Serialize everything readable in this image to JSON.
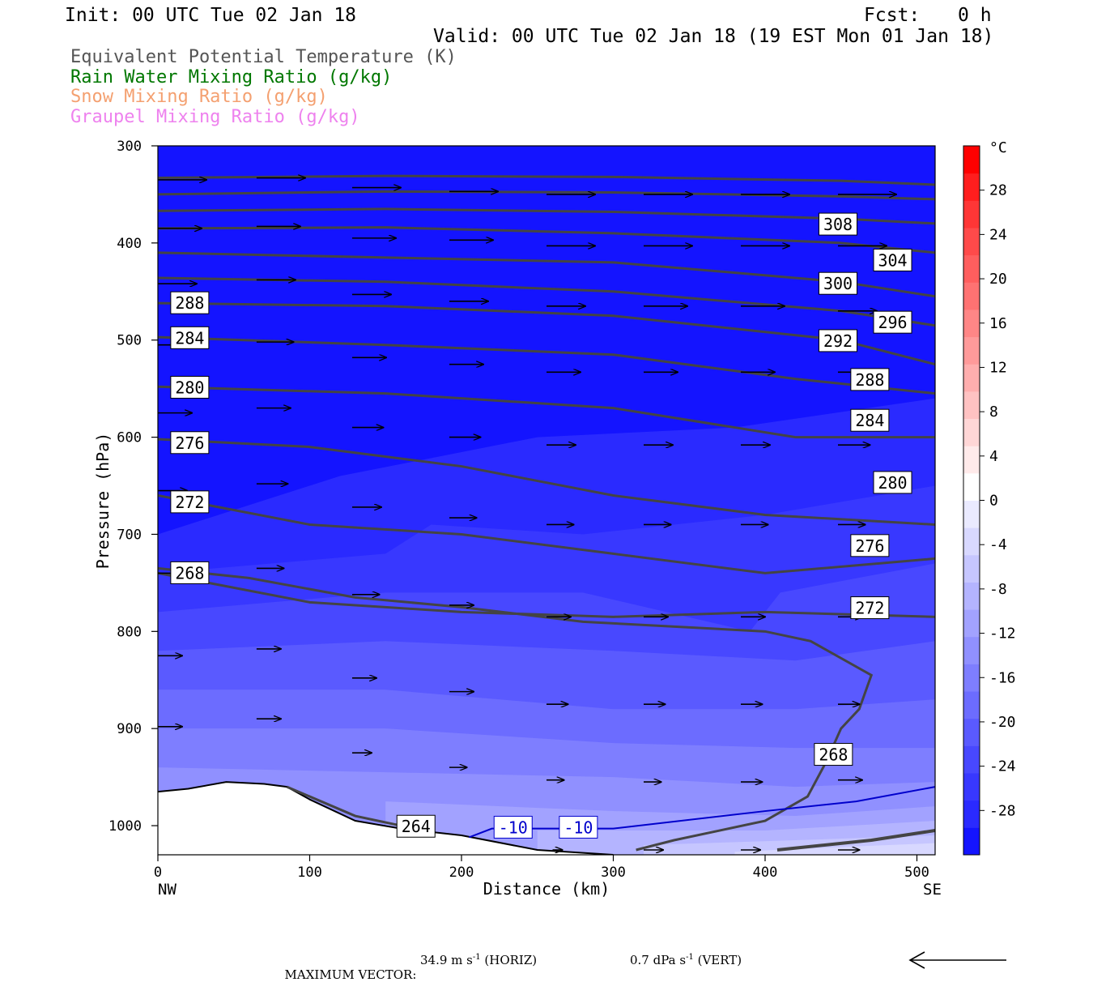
{
  "header": {
    "init": "Init: 00 UTC Tue 02 Jan 18",
    "fcst_label": "Fcst:",
    "fcst_value": "0 h",
    "valid": "Valid: 00 UTC Tue 02 Jan 18 (19 EST Mon 01 Jan 18)"
  },
  "legend": {
    "line1": "Equivalent Potential Temperature (K)",
    "line2": "Rain Water Mixing Ratio (g/kg)",
    "line3": "Snow Mixing Ratio (g/kg)",
    "line4": "Graupel Mixing Ratio (g/kg)",
    "color1": "#555555",
    "color2": "#007700",
    "color3": "#f4a070",
    "color4": "#ee82ee"
  },
  "chart_data": {
    "type": "cross-section",
    "xlabel": "Distance (km)",
    "ylabel": "Pressure (hPa)",
    "xlim": [
      0,
      512
    ],
    "ylim": [
      1030,
      300
    ],
    "xticks": [
      0,
      100,
      200,
      300,
      400,
      500
    ],
    "yticks": [
      300,
      400,
      500,
      600,
      700,
      800,
      900,
      1000
    ],
    "x_end_labels": {
      "left": "NW",
      "right": "SE"
    },
    "shaded_field": "Temperature (°C)",
    "colorbar": {
      "unit": "°C",
      "ticks": [
        28,
        24,
        20,
        16,
        12,
        8,
        4,
        0,
        -4,
        -8,
        -12,
        -16,
        -20,
        -24,
        -28
      ],
      "range": [
        -32,
        32
      ],
      "colors": [
        "#1414ff",
        "#2a2aff",
        "#3838ff",
        "#4848ff",
        "#5a5aff",
        "#6c6cff",
        "#7e7eff",
        "#9090ff",
        "#a2a2ff",
        "#b4b4ff",
        "#c6c6ff",
        "#d8d8ff",
        "#eaeaff",
        "#ffffff",
        "#ffeaea",
        "#ffd6d6",
        "#ffc2c2",
        "#ffaeae",
        "#ff9a9a",
        "#ff8686",
        "#ff7272",
        "#ff5e5e",
        "#ff4a4a",
        "#ff3636",
        "#ff1e1e",
        "#ff0000"
      ]
    },
    "theta_e_labels": [
      "308",
      "304",
      "300",
      "296",
      "292",
      "288",
      "284",
      "280",
      "276",
      "272",
      "268",
      "264"
    ],
    "temperature_contour_labels": [
      "-10",
      "-10"
    ],
    "max_vector_horiz": "34.9 m s⁻¹ (HORIZ)",
    "max_vector_vert": "0.7 dPa s⁻¹ (VERT)"
  },
  "footer": {
    "label": "MAXIMUM VECTOR:",
    "horiz": "34.9 m s",
    "horiz_unit": "(HORIZ)",
    "vert": "0.7 dPa s",
    "vert_unit": "(VERT)",
    "sup": "-1"
  }
}
